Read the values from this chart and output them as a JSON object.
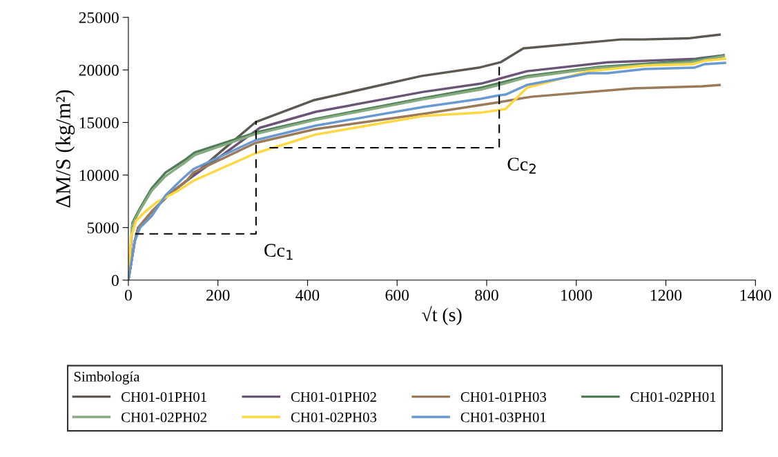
{
  "chart_data": {
    "type": "line",
    "xlabel": "√t (s)",
    "ylabel": "ΔM/S (kg/m²)",
    "legend_title": "Simbología",
    "xlim": [
      0,
      1400
    ],
    "xticks": [
      0,
      200,
      400,
      600,
      800,
      1000,
      1200,
      1400
    ],
    "ylim": [
      0,
      25000
    ],
    "yticks": [
      0,
      5000,
      10000,
      15000,
      20000,
      25000
    ],
    "grid": false,
    "legend": "bottom",
    "marker": "none",
    "line_style": "solid",
    "annotations": [
      "Cc$_{1}$",
      "Cc$_{2}$"
    ],
    "series": [
      {
        "name": "CH01-01PH01",
        "color": "#5e5852",
        "x": [
          0,
          14,
          22,
          52,
          94,
          130,
          200,
          284,
          415,
          654,
          782,
          831,
          882,
          1100,
          1150,
          1250,
          1320
        ],
        "values": [
          0,
          3670,
          4990,
          6500,
          8270,
          9450,
          12000,
          15030,
          17130,
          19420,
          20210,
          20730,
          22050,
          22900,
          22900,
          23000,
          23360
        ]
      },
      {
        "name": "CH01-01PH02",
        "color": "#6b5577",
        "x": [
          0,
          14,
          22,
          52,
          94,
          130,
          200,
          294,
          418,
          658,
          788,
          834,
          890,
          1070,
          1266,
          1329
        ],
        "values": [
          0,
          3670,
          4990,
          6500,
          8270,
          9450,
          11600,
          14500,
          16010,
          17910,
          18700,
          19230,
          19880,
          20730,
          21060,
          21390
        ]
      },
      {
        "name": "CH01-01PH03",
        "color": "#9a7a58",
        "x": [
          0,
          14,
          22,
          52,
          94,
          130,
          145,
          284,
          418,
          658,
          788,
          828,
          900,
          1127,
          1281,
          1320
        ],
        "values": [
          0,
          3670,
          4990,
          6500,
          8270,
          9450,
          10240,
          13060,
          14370,
          15810,
          16670,
          16930,
          17450,
          18240,
          18440,
          18570
        ]
      },
      {
        "name": "CH01-02PH01",
        "color": "#4f7d5a",
        "x": [
          0,
          9,
          25,
          52,
          83,
          130,
          148,
          284,
          418,
          658,
          788,
          831,
          890,
          1050,
          1255,
          1329
        ],
        "values": [
          0,
          5450,
          6760,
          8730,
          10240,
          11550,
          12140,
          14040,
          15350,
          17320,
          18310,
          18770,
          19420,
          20280,
          20870,
          21390
        ]
      },
      {
        "name": "CH01-02PH02",
        "color": "#85ab7e",
        "x": [
          0,
          9,
          25,
          52,
          83,
          130,
          148,
          284,
          418,
          658,
          788,
          831,
          890,
          1050,
          1255,
          1329
        ],
        "values": [
          0,
          5300,
          6600,
          8500,
          9900,
          11300,
          11900,
          13900,
          15250,
          17200,
          18150,
          18600,
          19300,
          20200,
          20750,
          21300
        ]
      },
      {
        "name": "CH01-02PH03",
        "color": "#ffd740",
        "x": [
          0,
          6,
          17,
          37,
          63,
          109,
          145,
          284,
          418,
          658,
          788,
          842,
          890,
          1028,
          1152,
          1260,
          1286,
          1332
        ],
        "values": [
          0,
          4130,
          5640,
          6500,
          7400,
          8460,
          9450,
          12070,
          13850,
          15620,
          15940,
          16270,
          18310,
          19880,
          20410,
          20540,
          20870,
          21060
        ]
      },
      {
        "name": "CH01-03PH01",
        "color": "#6a98d0",
        "x": [
          0,
          14,
          26,
          52,
          83,
          119,
          145,
          284,
          418,
          658,
          788,
          828,
          842,
          890,
          1028,
          1070,
          1152,
          1263,
          1286,
          1332
        ],
        "values": [
          0,
          3670,
          4990,
          6100,
          8070,
          9580,
          10560,
          13320,
          14700,
          16470,
          17260,
          17590,
          17650,
          18570,
          19690,
          19690,
          20080,
          20210,
          20540,
          20670
        ]
      },
      {
        "color": "#000000",
        "line_style": "dashed",
        "x": [
          15,
          285,
          285
        ],
        "values": [
          4400,
          4400,
          15150
        ]
      },
      {
        "color": "#000000",
        "line_style": "dashed",
        "x": [
          315,
          828,
          828
        ],
        "values": [
          12600,
          12600,
          20730
        ]
      }
    ]
  }
}
